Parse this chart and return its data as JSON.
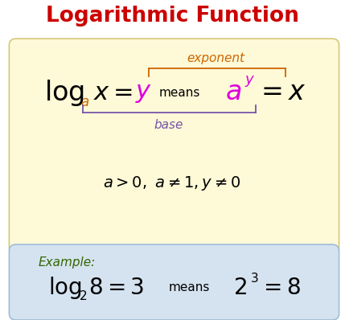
{
  "title": "Logarithmic Function",
  "title_color": "#cc0000",
  "title_fontsize": 19,
  "bg_color": "#ffffff",
  "yellow_box_facecolor": "#fef9d7",
  "yellow_box_edgecolor": "#d4c87a",
  "blue_box_facecolor": "#d5e3f0",
  "blue_box_edgecolor": "#a0bcd8",
  "exponent_label": "exponent",
  "exponent_color": "#cc6600",
  "base_label": "base",
  "base_color": "#7755aa",
  "example_label": "Example:",
  "example_color": "#336600",
  "magenta_color": "#dd00dd",
  "black": "#000000",
  "fig_w": 4.29,
  "fig_h": 3.98,
  "dpi": 100
}
